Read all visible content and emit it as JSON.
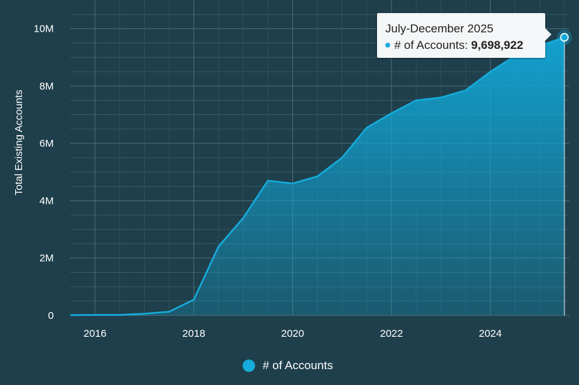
{
  "chart_data": {
    "type": "area",
    "ylabel": "Total Existing Accounts",
    "x_ticks": [
      "2016",
      "2018",
      "2020",
      "2022",
      "2024"
    ],
    "y_ticks": [
      "0",
      "2M",
      "4M",
      "6M",
      "8M",
      "10M"
    ],
    "ylim": [
      0,
      11000000
    ],
    "xlim": [
      2015.5,
      2025.6
    ],
    "grid": true,
    "legend_position": "bottom-center",
    "series": [
      {
        "name": "# of Accounts",
        "color": "#16abdb",
        "x": [
          2015.5,
          2016.0,
          2016.5,
          2017.0,
          2017.5,
          2018.0,
          2018.5,
          2019.0,
          2019.5,
          2020.0,
          2020.5,
          2021.0,
          2021.5,
          2022.0,
          2022.5,
          2023.0,
          2023.5,
          2024.0,
          2024.5,
          2025.0,
          2025.5
        ],
        "values": [
          10000,
          20000,
          20000,
          60000,
          130000,
          550000,
          2400000,
          3400000,
          4700000,
          4600000,
          4850000,
          5500000,
          6550000,
          7050000,
          7500000,
          7600000,
          7850000,
          8500000,
          9050000,
          9400000,
          9698922
        ]
      }
    ]
  },
  "tooltip": {
    "title": "July-December 2025",
    "series_label": "# of Accounts: ",
    "value": "9,698,922"
  },
  "legend": {
    "label": "# of Accounts"
  }
}
